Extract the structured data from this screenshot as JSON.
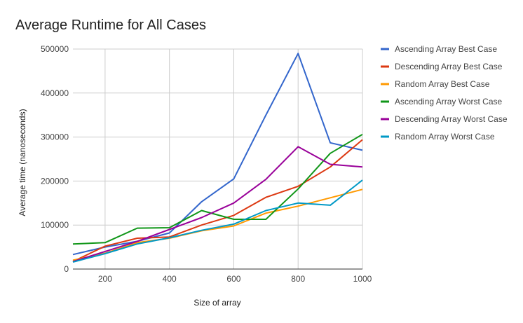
{
  "chart_data": {
    "type": "line",
    "title": "Average Runtime for All Cases",
    "xlabel": "Size of array",
    "ylabel": "Average time (nanoseconds)",
    "x": [
      100,
      200,
      300,
      400,
      500,
      600,
      700,
      800,
      900,
      1000
    ],
    "xlim": [
      100,
      1000
    ],
    "ylim": [
      0,
      500000
    ],
    "xticks": [
      200,
      400,
      600,
      800,
      1000
    ],
    "yticks": [
      0,
      100000,
      200000,
      300000,
      400000,
      500000
    ],
    "grid": true,
    "legend_position": "right",
    "series": [
      {
        "name": "Ascending Array Best Case",
        "color": "#3366cc",
        "values": [
          33000,
          50000,
          63000,
          82000,
          153000,
          205000,
          350000,
          490000,
          287000,
          270000
        ]
      },
      {
        "name": "Descending Array Best Case",
        "color": "#dc3912",
        "values": [
          17000,
          52000,
          70000,
          73000,
          100000,
          122000,
          163000,
          188000,
          232000,
          294000
        ]
      },
      {
        "name": "Random Array Best Case",
        "color": "#ff9900",
        "values": [
          20000,
          36000,
          60000,
          70000,
          87000,
          98000,
          127000,
          143000,
          162000,
          181000
        ]
      },
      {
        "name": "Ascending Array Worst Case",
        "color": "#109618",
        "values": [
          57000,
          60000,
          93000,
          94000,
          133000,
          113000,
          113000,
          182000,
          263000,
          306000
        ]
      },
      {
        "name": "Descending Array Worst Case",
        "color": "#990099",
        "values": [
          17000,
          40000,
          63000,
          90000,
          117000,
          150000,
          204000,
          278000,
          238000,
          232000
        ]
      },
      {
        "name": "Random Array Worst Case",
        "color": "#0099c6",
        "values": [
          16000,
          35000,
          57000,
          71000,
          88000,
          102000,
          133000,
          150000,
          145000,
          202000
        ]
      }
    ]
  }
}
